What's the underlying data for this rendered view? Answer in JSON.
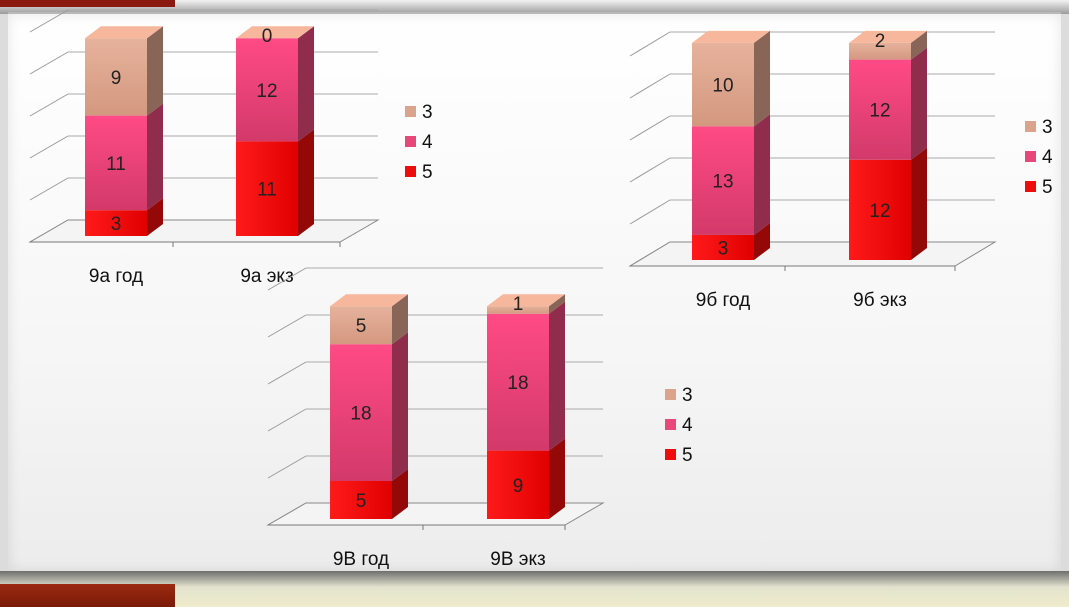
{
  "chart_data": [
    {
      "type": "bar",
      "stacked": true,
      "categories": [
        "9а год",
        "9а экз"
      ],
      "series": [
        {
          "name": "5",
          "values": [
            3,
            11
          ]
        },
        {
          "name": "4",
          "values": [
            11,
            12
          ]
        },
        {
          "name": "3",
          "values": [
            9,
            0
          ]
        }
      ],
      "legend": "right",
      "grid": true
    },
    {
      "type": "bar",
      "stacked": true,
      "categories": [
        "9б год",
        "9б экз"
      ],
      "series": [
        {
          "name": "5",
          "values": [
            3,
            12
          ]
        },
        {
          "name": "4",
          "values": [
            13,
            12
          ]
        },
        {
          "name": "3",
          "values": [
            10,
            2
          ]
        }
      ],
      "legend": "right",
      "grid": true
    },
    {
      "type": "bar",
      "stacked": true,
      "categories": [
        "9В год",
        "9В экз"
      ],
      "series": [
        {
          "name": "5",
          "values": [
            5,
            9
          ]
        },
        {
          "name": "4",
          "values": [
            18,
            18
          ]
        },
        {
          "name": "3",
          "values": [
            5,
            1
          ]
        }
      ],
      "legend": "right",
      "grid": true
    }
  ],
  "colors": {
    "grade_5": "#ee0d0d",
    "grade_4": "#e8477a",
    "grade_3": "#dca38c"
  }
}
